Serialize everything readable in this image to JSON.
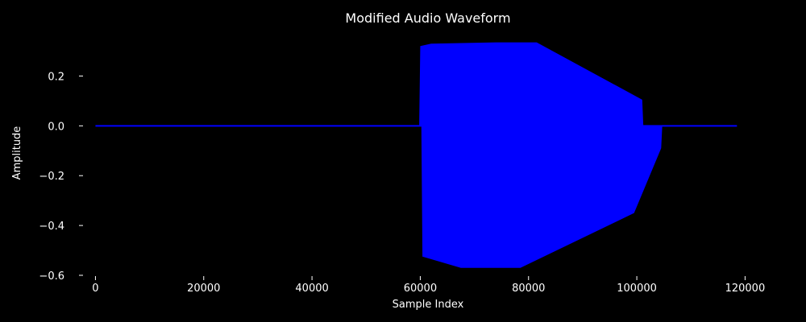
{
  "chart_data": {
    "type": "area",
    "title": "Modified Audio Waveform",
    "xlabel": "Sample Index",
    "ylabel": "Amplitude",
    "xlim": [
      -2000,
      125000
    ],
    "ylim": [
      -0.6,
      0.35
    ],
    "x_ticks": [
      0,
      20000,
      40000,
      60000,
      80000,
      100000,
      120000
    ],
    "y_ticks": [
      0.2,
      0.0,
      -0.2,
      -0.4,
      -0.6
    ],
    "y_tick_labels": [
      "0.2",
      "0.0",
      "−0.2",
      "−0.4",
      "−0.6"
    ],
    "grid": false,
    "legend": "none",
    "colors": {
      "background": "#000000",
      "waveform": "#0000ff",
      "text": "#ffffff"
    },
    "series": [
      {
        "upper": [
          {
            "x": 0,
            "y": 0.0
          },
          {
            "x": 59800,
            "y": 0.0
          },
          {
            "x": 60000,
            "y": 0.32
          },
          {
            "x": 62000,
            "y": 0.33
          },
          {
            "x": 74000,
            "y": 0.335
          },
          {
            "x": 81500,
            "y": 0.335
          },
          {
            "x": 101000,
            "y": 0.105
          },
          {
            "x": 101200,
            "y": 0.0
          },
          {
            "x": 118500,
            "y": 0.0
          }
        ],
        "lower": [
          {
            "x": 0,
            "y": 0.0
          },
          {
            "x": 60200,
            "y": 0.0
          },
          {
            "x": 60400,
            "y": -0.525
          },
          {
            "x": 67500,
            "y": -0.57
          },
          {
            "x": 78500,
            "y": -0.57
          },
          {
            "x": 99500,
            "y": -0.35
          },
          {
            "x": 104500,
            "y": -0.09
          },
          {
            "x": 104700,
            "y": 0.0
          },
          {
            "x": 118500,
            "y": 0.0
          }
        ]
      }
    ]
  }
}
